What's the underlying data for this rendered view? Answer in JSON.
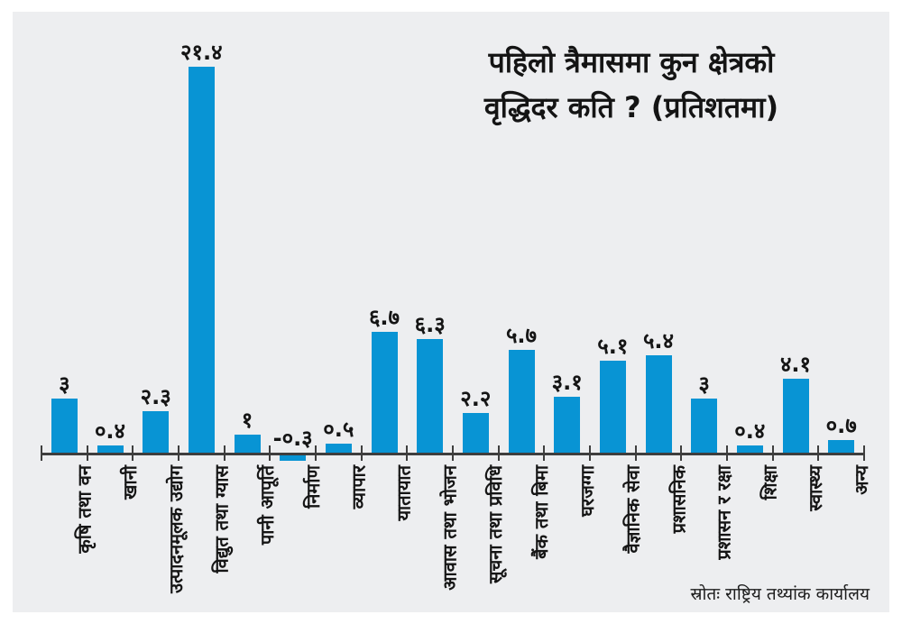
{
  "header": {
    "title_line1": "पहिलो त्रैमासमा कुन क्षेत्रको",
    "title_line2": "वृद्धिदर कति ? (प्रतिशतमा)"
  },
  "footer": {
    "source": "स्रोतः राष्ट्रिय तथ्यांक कार्यालय"
  },
  "colors": {
    "panel_background": "#edeef0",
    "bar": "#0894d4",
    "axis": "#3e3e3e",
    "text": "#151515"
  },
  "chart_data": {
    "type": "bar",
    "title": "पहिलो त्रैमासमा कुन क्षेत्रको वृद्धिदर कति ? (प्रतिशतमा)",
    "unit": "percent",
    "grid": false,
    "legend": false,
    "ylim": [
      -0.5,
      22
    ],
    "categories": [
      "कृषि तथा वन",
      "खानी",
      "उत्पादनमूलक उद्योग",
      "विद्युत तथा ग्यास",
      "पानी आपूर्ति",
      "निर्माण",
      "व्यापार",
      "यातायात",
      "आवास तथा भोजन",
      "सूचना तथा प्रविधि",
      "बैंक तथा बिमा",
      "घरजग्गा",
      "वैज्ञानिक सेवा",
      "प्रशासनिक",
      "प्रशासन र रक्षा",
      "शिक्षा",
      "स्वास्थ्य",
      "अन्य"
    ],
    "values": [
      3,
      0.4,
      2.3,
      21.4,
      1,
      -0.3,
      0.5,
      6.7,
      6.3,
      2.2,
      5.7,
      3.1,
      5.1,
      5.4,
      3,
      0.4,
      4.1,
      0.7
    ],
    "value_labels": [
      "३",
      "०.४",
      "२.३",
      "२१.४",
      "१",
      "-०.३",
      "०.५",
      "६.७",
      "६.३",
      "२.२",
      "५.७",
      "३.१",
      "५.१",
      "५.४",
      "३",
      "०.४",
      "४.१",
      "०.७"
    ],
    "source": "स्रोतः राष्ट्रिय तथ्यांक कार्यालय"
  }
}
